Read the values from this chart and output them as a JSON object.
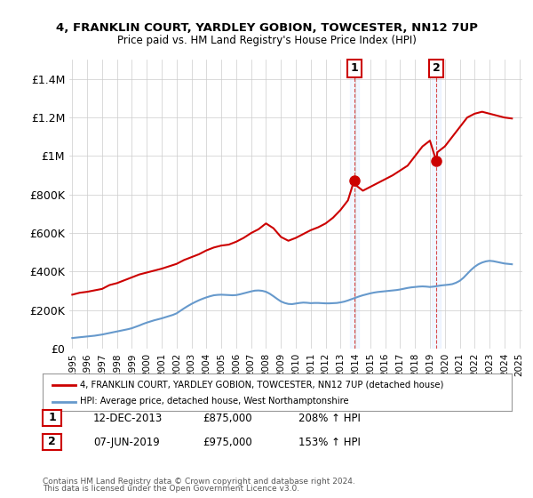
{
  "title1": "4, FRANKLIN COURT, YARDLEY GOBION, TOWCESTER, NN12 7UP",
  "title2": "Price paid vs. HM Land Registry's House Price Index (HPI)",
  "legend_line1": "4, FRANKLIN COURT, YARDLEY GOBION, TOWCESTER, NN12 7UP (detached house)",
  "legend_line2": "HPI: Average price, detached house, West Northamptonshire",
  "footer1": "Contains HM Land Registry data © Crown copyright and database right 2024.",
  "footer2": "This data is licensed under the Open Government Licence v3.0.",
  "annotation1_label": "1",
  "annotation1_date": "12-DEC-2013",
  "annotation1_price": "£875,000",
  "annotation1_hpi": "208% ↑ HPI",
  "annotation2_label": "2",
  "annotation2_date": "07-JUN-2019",
  "annotation2_price": "£975,000",
  "annotation2_hpi": "153% ↑ HPI",
  "hpi_color": "#6699cc",
  "price_color": "#cc0000",
  "annotation_color": "#cc0000",
  "background_color": "#ffffff",
  "plot_bg_color": "#ffffff",
  "grid_color": "#cccccc",
  "ylim": [
    0,
    1500000
  ],
  "yticks": [
    0,
    200000,
    400000,
    600000,
    800000,
    1000000,
    1200000,
    1400000
  ],
  "ytick_labels": [
    "£0",
    "£200K",
    "£400K",
    "£600K",
    "£800K",
    "£1M",
    "£1.2M",
    "£1.4M"
  ],
  "hpi_x": [
    1995.0,
    1995.25,
    1995.5,
    1995.75,
    1996.0,
    1996.25,
    1996.5,
    1996.75,
    1997.0,
    1997.25,
    1997.5,
    1997.75,
    1998.0,
    1998.25,
    1998.5,
    1998.75,
    1999.0,
    1999.25,
    1999.5,
    1999.75,
    2000.0,
    2000.25,
    2000.5,
    2000.75,
    2001.0,
    2001.25,
    2001.5,
    2001.75,
    2002.0,
    2002.25,
    2002.5,
    2002.75,
    2003.0,
    2003.25,
    2003.5,
    2003.75,
    2004.0,
    2004.25,
    2004.5,
    2004.75,
    2005.0,
    2005.25,
    2005.5,
    2005.75,
    2006.0,
    2006.25,
    2006.5,
    2006.75,
    2007.0,
    2007.25,
    2007.5,
    2007.75,
    2008.0,
    2008.25,
    2008.5,
    2008.75,
    2009.0,
    2009.25,
    2009.5,
    2009.75,
    2010.0,
    2010.25,
    2010.5,
    2010.75,
    2011.0,
    2011.25,
    2011.5,
    2011.75,
    2012.0,
    2012.25,
    2012.5,
    2012.75,
    2013.0,
    2013.25,
    2013.5,
    2013.75,
    2014.0,
    2014.25,
    2014.5,
    2014.75,
    2015.0,
    2015.25,
    2015.5,
    2015.75,
    2016.0,
    2016.25,
    2016.5,
    2016.75,
    2017.0,
    2017.25,
    2017.5,
    2017.75,
    2018.0,
    2018.25,
    2018.5,
    2018.75,
    2019.0,
    2019.25,
    2019.5,
    2019.75,
    2020.0,
    2020.25,
    2020.5,
    2020.75,
    2021.0,
    2021.25,
    2021.5,
    2021.75,
    2022.0,
    2022.25,
    2022.5,
    2022.75,
    2023.0,
    2023.25,
    2023.5,
    2023.75,
    2024.0,
    2024.25,
    2024.5
  ],
  "hpi_y": [
    55000,
    57000,
    59000,
    61000,
    63000,
    65000,
    67000,
    70000,
    73000,
    77000,
    81000,
    85000,
    89000,
    93000,
    97000,
    101000,
    106000,
    113000,
    120000,
    128000,
    135000,
    141000,
    147000,
    152000,
    157000,
    163000,
    169000,
    175000,
    183000,
    196000,
    209000,
    221000,
    232000,
    242000,
    251000,
    259000,
    266000,
    272000,
    277000,
    279000,
    280000,
    279000,
    278000,
    277000,
    278000,
    282000,
    287000,
    292000,
    297000,
    301000,
    302000,
    300000,
    295000,
    285000,
    272000,
    258000,
    245000,
    237000,
    232000,
    231000,
    234000,
    237000,
    239000,
    238000,
    236000,
    237000,
    237000,
    236000,
    235000,
    235000,
    236000,
    237000,
    240000,
    244000,
    250000,
    257000,
    264000,
    271000,
    277000,
    282000,
    287000,
    291000,
    294000,
    296000,
    298000,
    300000,
    302000,
    304000,
    307000,
    311000,
    315000,
    318000,
    320000,
    322000,
    323000,
    322000,
    320000,
    322000,
    325000,
    328000,
    330000,
    332000,
    335000,
    342000,
    352000,
    368000,
    388000,
    408000,
    425000,
    438000,
    447000,
    453000,
    456000,
    454000,
    450000,
    446000,
    442000,
    440000,
    438000
  ],
  "price_x": [
    1995.0,
    1995.5,
    1996.0,
    1997.0,
    1997.5,
    1998.0,
    1998.5,
    1999.0,
    1999.5,
    2000.0,
    2000.5,
    2001.0,
    2002.0,
    2002.5,
    2003.0,
    2003.5,
    2004.0,
    2004.5,
    2005.0,
    2005.5,
    2006.0,
    2006.5,
    2007.0,
    2007.5,
    2007.83,
    2008.0,
    2008.5,
    2009.0,
    2009.5,
    2010.0,
    2010.5,
    2011.0,
    2011.5,
    2012.0,
    2012.5,
    2013.0,
    2013.5,
    2013.92,
    2014.0,
    2014.5,
    2015.0,
    2015.5,
    2016.0,
    2016.5,
    2017.0,
    2017.5,
    2018.0,
    2018.5,
    2019.0,
    2019.42,
    2019.5,
    2020.0,
    2020.5,
    2021.0,
    2021.5,
    2022.0,
    2022.5,
    2023.0,
    2023.5,
    2024.0,
    2024.5
  ],
  "price_y": [
    280000,
    290000,
    295000,
    310000,
    330000,
    340000,
    355000,
    370000,
    385000,
    395000,
    405000,
    415000,
    440000,
    460000,
    475000,
    490000,
    510000,
    525000,
    535000,
    540000,
    555000,
    575000,
    600000,
    620000,
    640000,
    650000,
    625000,
    580000,
    560000,
    575000,
    595000,
    615000,
    630000,
    650000,
    680000,
    720000,
    770000,
    875000,
    850000,
    820000,
    840000,
    860000,
    880000,
    900000,
    925000,
    950000,
    1000000,
    1050000,
    1080000,
    975000,
    1020000,
    1050000,
    1100000,
    1150000,
    1200000,
    1220000,
    1230000,
    1220000,
    1210000,
    1200000,
    1195000
  ],
  "sale1_x": 2013.92,
  "sale1_y": 875000,
  "sale2_x": 2019.42,
  "sale2_y": 975000,
  "xtick_years": [
    1995,
    1996,
    1997,
    1998,
    1999,
    2000,
    2001,
    2002,
    2003,
    2004,
    2005,
    2006,
    2007,
    2008,
    2009,
    2010,
    2011,
    2012,
    2013,
    2014,
    2015,
    2016,
    2017,
    2018,
    2019,
    2020,
    2021,
    2022,
    2023,
    2024,
    2025
  ]
}
